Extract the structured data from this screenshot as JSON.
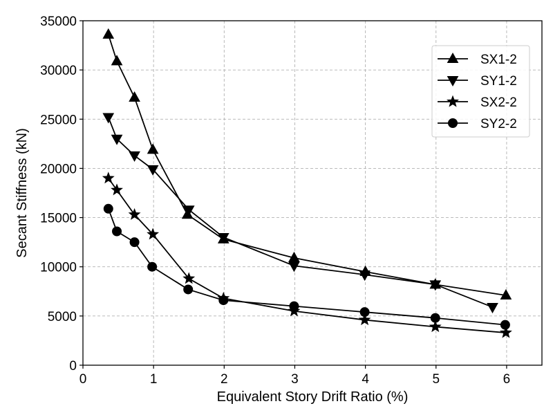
{
  "chart_data": {
    "type": "line",
    "title": "",
    "xlabel": "Equivalent Story Drift Ratio (%)",
    "ylabel": "Secant Stiffness (kN)",
    "xlim": [
      0,
      6.5
    ],
    "ylim": [
      0,
      35000
    ],
    "xticks": [
      0,
      1,
      2,
      3,
      4,
      5,
      6
    ],
    "yticks": [
      0,
      5000,
      10000,
      15000,
      20000,
      25000,
      30000,
      35000
    ],
    "grid": true,
    "legend_position": "top-right",
    "series": [
      {
        "name": "SX1-2",
        "marker": "triangle-up",
        "color": "#000000",
        "x": [
          0.36,
          0.48,
          0.73,
          0.99,
          1.48,
          1.99,
          2.99,
          4.0,
          4.99,
          5.99
        ],
        "y": [
          33600,
          30900,
          27200,
          21900,
          15300,
          12800,
          10900,
          9500,
          8200,
          7100
        ]
      },
      {
        "name": "SY1-2",
        "marker": "triangle-down",
        "color": "#000000",
        "x": [
          0.36,
          0.48,
          0.73,
          0.99,
          1.5,
          1.99,
          2.99,
          3.99,
          4.99,
          5.8
        ],
        "y": [
          25200,
          23000,
          21300,
          19900,
          15800,
          13000,
          10100,
          9200,
          8200,
          5900
        ]
      },
      {
        "name": "SX2-2",
        "marker": "star",
        "color": "#000000",
        "x": [
          0.36,
          0.48,
          0.73,
          0.99,
          1.5,
          1.99,
          2.99,
          3.99,
          4.99,
          5.99
        ],
        "y": [
          19000,
          17800,
          15300,
          13300,
          8800,
          6800,
          5500,
          4600,
          3900,
          3300
        ]
      },
      {
        "name": "SY2-2",
        "marker": "circle",
        "color": "#000000",
        "x": [
          0.36,
          0.48,
          0.73,
          0.98,
          1.49,
          1.99,
          2.99,
          3.99,
          4.99,
          5.98
        ],
        "y": [
          15900,
          13600,
          12500,
          10000,
          7700,
          6600,
          6000,
          5400,
          4800,
          4100
        ]
      }
    ]
  }
}
